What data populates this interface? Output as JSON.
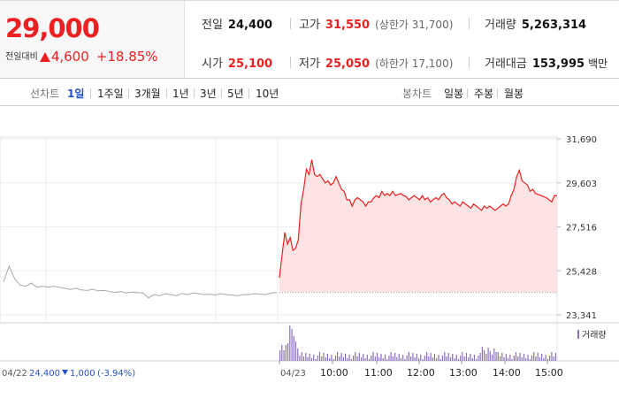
{
  "summary": {
    "price": "29,000",
    "change_label": "전일대비",
    "change_amount": "4,600",
    "change_percent": "+18.85%",
    "prev_close": {
      "label": "전일",
      "value": "24,400"
    },
    "high": {
      "label": "고가",
      "value": "31,550",
      "sub": "(상한가 31,700)"
    },
    "volume": {
      "label": "거래량",
      "value": "5,263,314"
    },
    "open": {
      "label": "시가",
      "value": "25,100"
    },
    "low": {
      "label": "저가",
      "value": "25,050",
      "sub": "(하한가 17,100)"
    },
    "trade_value": {
      "label": "거래대금",
      "value": "153,995",
      "unit": "백만"
    }
  },
  "toolbar": {
    "line_chart_label": "선차트",
    "periods": [
      "1일",
      "1주일",
      "3개월",
      "1년",
      "3년",
      "5년",
      "10년"
    ],
    "active_period": "1일",
    "candle_label": "봉차트",
    "candles": [
      "일봉",
      "주봉",
      "월봉"
    ]
  },
  "colors": {
    "up": "#ec2020",
    "down": "#2750c8",
    "volume": "#8a6fb8",
    "prev_line": "#a8a8a8"
  },
  "chart_data": {
    "type": "line",
    "y_ticks": [
      "31,690",
      "29,603",
      "27,516",
      "25,428",
      "23,341"
    ],
    "ylim": [
      23341,
      31690
    ],
    "grid": true,
    "volume_legend": "거래량",
    "prev_day": {
      "date_label": "04/22",
      "close": "24,400",
      "change": "1,000",
      "change_percent": "(-3.94%)",
      "prices": [
        24900,
        25650,
        25050,
        24750,
        24700,
        24850,
        24650,
        24700,
        24650,
        24700,
        24650,
        24600,
        24550,
        24600,
        24520,
        24500,
        24550,
        24480,
        24500,
        24450,
        24400,
        24450,
        24380,
        24420,
        24400,
        24380,
        24150,
        24300,
        24250,
        24350,
        24300,
        24250,
        24350,
        24300,
        24380,
        24350,
        24300,
        24320,
        24280,
        24350,
        24300,
        24280,
        24250,
        24300,
        24300,
        24350,
        24320,
        24300,
        24380,
        24400
      ]
    },
    "today": {
      "date_label": "04/23",
      "x_ticks": [
        "10:00",
        "11:00",
        "12:00",
        "13:00",
        "14:00",
        "15:00"
      ],
      "baseline": 24400,
      "prices": [
        25100,
        26200,
        27250,
        26700,
        27000,
        26400,
        26500,
        26900,
        28600,
        29300,
        30250,
        30000,
        30700,
        30000,
        29900,
        30000,
        29800,
        29600,
        29700,
        29500,
        29600,
        29900,
        29600,
        29300,
        29200,
        28800,
        28800,
        28500,
        28800,
        28900,
        28800,
        28700,
        28500,
        28700,
        28700,
        28900,
        29000,
        28900,
        29200,
        29000,
        29100,
        29000,
        29200,
        29000,
        29050,
        29100,
        29000,
        28950,
        28800,
        28900,
        29000,
        28900,
        28800,
        29000,
        28800,
        28900,
        28700,
        28800,
        28900,
        28800,
        29000,
        29100,
        28900,
        28800,
        28600,
        28700,
        28600,
        28500,
        28700,
        28600,
        28500,
        28400,
        28600,
        28500,
        28400,
        28300,
        28500,
        28400,
        28500,
        28400,
        28300,
        28400,
        28500,
        28600,
        28500,
        28600,
        29000,
        29300,
        29900,
        30200,
        29700,
        29600,
        29500,
        29200,
        29300,
        29100,
        29050,
        29000,
        28950,
        28900,
        28800,
        28700,
        29000,
        29000
      ]
    }
  }
}
